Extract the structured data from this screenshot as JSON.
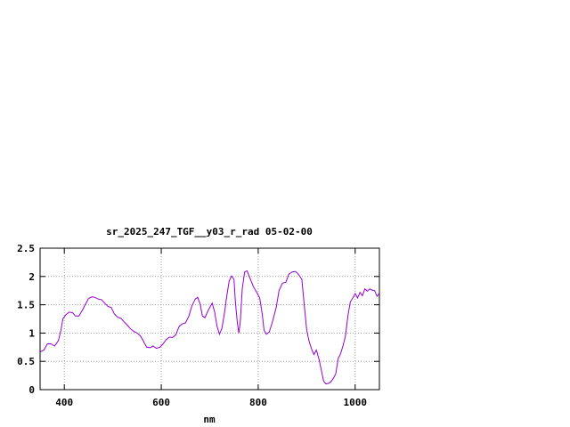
{
  "chart_data": {
    "type": "line",
    "title": "sr_2025_247_TGF__y03_r_rad 05-02-00",
    "xlabel": "nm",
    "ylabel": "",
    "xlim": [
      350,
      1050
    ],
    "ylim": [
      0,
      2.5
    ],
    "grid": true,
    "line_color": "#9400d3",
    "xticks": [
      400,
      600,
      800,
      1000
    ],
    "xtick_labels": [
      "400",
      "600",
      "800",
      "1000"
    ],
    "yticks": [
      0,
      0.5,
      1,
      1.5,
      2,
      2.5
    ],
    "ytick_labels": [
      "0",
      "0.5",
      "1",
      "1.5",
      "2",
      "2.5"
    ],
    "series": [
      {
        "values": [
          [
            350,
            0.67
          ],
          [
            358,
            0.7
          ],
          [
            365,
            0.81
          ],
          [
            372,
            0.81
          ],
          [
            380,
            0.77
          ],
          [
            388,
            0.87
          ],
          [
            393,
            1.05
          ],
          [
            397,
            1.25
          ],
          [
            403,
            1.32
          ],
          [
            410,
            1.37
          ],
          [
            417,
            1.36
          ],
          [
            423,
            1.3
          ],
          [
            430,
            1.3
          ],
          [
            437,
            1.4
          ],
          [
            443,
            1.5
          ],
          [
            450,
            1.61
          ],
          [
            457,
            1.64
          ],
          [
            463,
            1.63
          ],
          [
            470,
            1.6
          ],
          [
            477,
            1.59
          ],
          [
            483,
            1.53
          ],
          [
            490,
            1.47
          ],
          [
            497,
            1.45
          ],
          [
            503,
            1.34
          ],
          [
            510,
            1.28
          ],
          [
            517,
            1.26
          ],
          [
            523,
            1.2
          ],
          [
            530,
            1.14
          ],
          [
            537,
            1.07
          ],
          [
            543,
            1.03
          ],
          [
            550,
            1.0
          ],
          [
            557,
            0.95
          ],
          [
            563,
            0.86
          ],
          [
            570,
            0.75
          ],
          [
            577,
            0.74
          ],
          [
            583,
            0.77
          ],
          [
            590,
            0.73
          ],
          [
            597,
            0.75
          ],
          [
            603,
            0.8
          ],
          [
            610,
            0.88
          ],
          [
            617,
            0.93
          ],
          [
            623,
            0.92
          ],
          [
            630,
            0.97
          ],
          [
            637,
            1.12
          ],
          [
            643,
            1.16
          ],
          [
            650,
            1.18
          ],
          [
            657,
            1.3
          ],
          [
            663,
            1.48
          ],
          [
            670,
            1.6
          ],
          [
            675,
            1.63
          ],
          [
            680,
            1.52
          ],
          [
            685,
            1.3
          ],
          [
            690,
            1.27
          ],
          [
            695,
            1.37
          ],
          [
            700,
            1.45
          ],
          [
            705,
            1.53
          ],
          [
            710,
            1.38
          ],
          [
            715,
            1.12
          ],
          [
            720,
            0.98
          ],
          [
            725,
            1.08
          ],
          [
            730,
            1.33
          ],
          [
            735,
            1.65
          ],
          [
            740,
            1.92
          ],
          [
            745,
            2.01
          ],
          [
            750,
            1.95
          ],
          [
            753,
            1.55
          ],
          [
            757,
            1.18
          ],
          [
            760,
            1.0
          ],
          [
            763,
            1.2
          ],
          [
            767,
            1.78
          ],
          [
            772,
            2.08
          ],
          [
            777,
            2.1
          ],
          [
            783,
            1.97
          ],
          [
            790,
            1.82
          ],
          [
            797,
            1.72
          ],
          [
            803,
            1.62
          ],
          [
            808,
            1.35
          ],
          [
            812,
            1.05
          ],
          [
            817,
            0.98
          ],
          [
            823,
            1.02
          ],
          [
            830,
            1.22
          ],
          [
            837,
            1.45
          ],
          [
            843,
            1.75
          ],
          [
            850,
            1.88
          ],
          [
            857,
            1.9
          ],
          [
            863,
            2.04
          ],
          [
            870,
            2.08
          ],
          [
            877,
            2.09
          ],
          [
            883,
            2.04
          ],
          [
            890,
            1.95
          ],
          [
            895,
            1.5
          ],
          [
            900,
            1.05
          ],
          [
            905,
            0.85
          ],
          [
            910,
            0.72
          ],
          [
            915,
            0.62
          ],
          [
            920,
            0.7
          ],
          [
            925,
            0.55
          ],
          [
            930,
            0.35
          ],
          [
            935,
            0.15
          ],
          [
            940,
            0.1
          ],
          [
            945,
            0.11
          ],
          [
            950,
            0.14
          ],
          [
            955,
            0.2
          ],
          [
            960,
            0.28
          ],
          [
            965,
            0.55
          ],
          [
            970,
            0.64
          ],
          [
            975,
            0.78
          ],
          [
            980,
            0.95
          ],
          [
            985,
            1.3
          ],
          [
            990,
            1.55
          ],
          [
            995,
            1.62
          ],
          [
            1000,
            1.7
          ],
          [
            1005,
            1.62
          ],
          [
            1010,
            1.72
          ],
          [
            1015,
            1.66
          ],
          [
            1020,
            1.78
          ],
          [
            1025,
            1.74
          ],
          [
            1030,
            1.78
          ],
          [
            1035,
            1.76
          ],
          [
            1040,
            1.75
          ],
          [
            1045,
            1.65
          ],
          [
            1050,
            1.7
          ]
        ]
      }
    ]
  }
}
